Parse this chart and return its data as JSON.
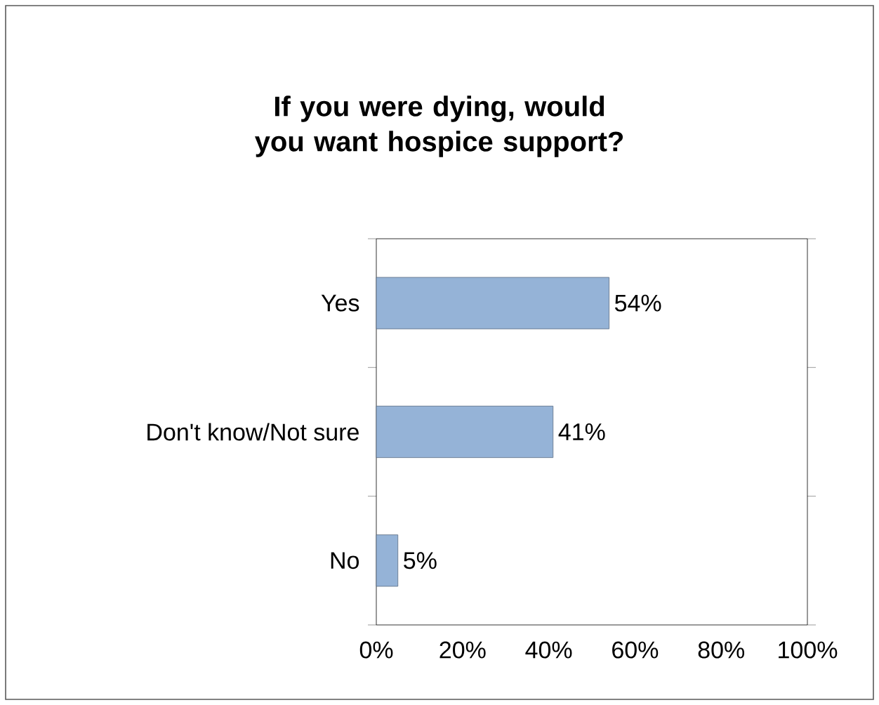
{
  "chart_data": {
    "type": "bar",
    "orientation": "horizontal",
    "title": "If you were dying, would you want hospice support?",
    "categories": [
      "Yes",
      "Don't know/Not sure",
      "No"
    ],
    "values": [
      54,
      41,
      5
    ],
    "value_labels": [
      "54%",
      "41%",
      "5%"
    ],
    "color": "#95b3d7",
    "xlim": [
      0,
      100
    ],
    "xticks": [
      {
        "value": 0,
        "label": "0%"
      },
      {
        "value": 20,
        "label": "20%"
      },
      {
        "value": 40,
        "label": "40%"
      },
      {
        "value": 60,
        "label": "60%"
      },
      {
        "value": 80,
        "label": "80%"
      },
      {
        "value": 100,
        "label": "100%"
      }
    ]
  }
}
